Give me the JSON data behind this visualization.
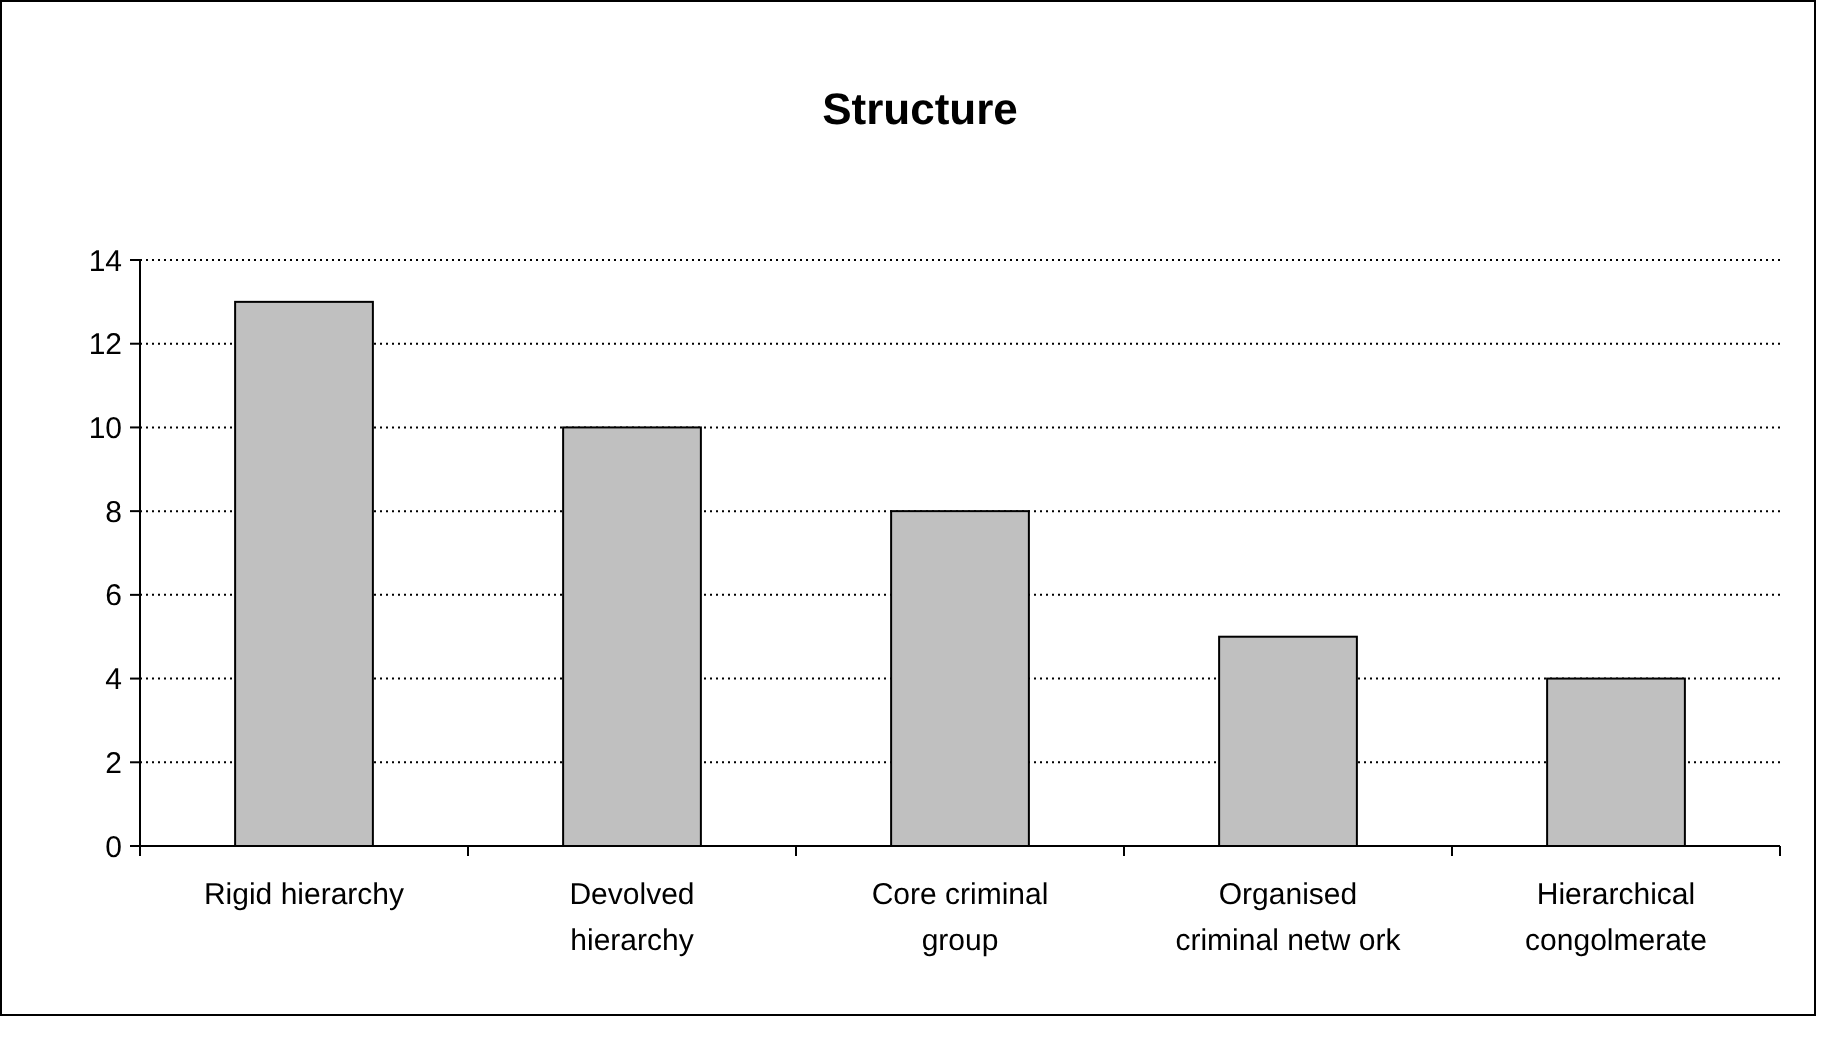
{
  "chart_data": {
    "type": "bar",
    "title": "Structure",
    "categories": [
      "Rigid hierarchy",
      "Devolved hierarchy",
      "Core criminal group",
      "Organised criminal netw ork",
      "Hierarchical congolmerate"
    ],
    "values": [
      13,
      10,
      8,
      5,
      4
    ],
    "color": "#c0c0c0",
    "ylim": [
      0,
      14
    ],
    "yticks": [
      0,
      2,
      4,
      6,
      8,
      10,
      12,
      14
    ],
    "grid": "y"
  }
}
